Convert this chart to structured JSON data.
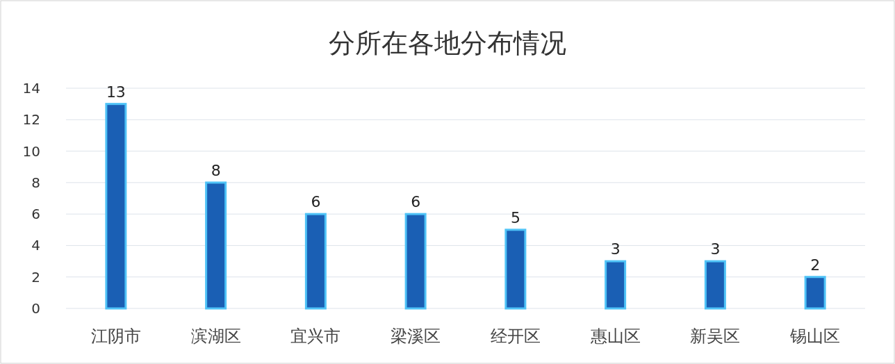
{
  "chart_data": {
    "type": "bar",
    "title": "分所在各地分布情况",
    "categories": [
      "江阴市",
      "滨湖区",
      "宜兴市",
      "梁溪区",
      "经开区",
      "惠山区",
      "新吴区",
      "锡山区"
    ],
    "values": [
      13,
      8,
      6,
      6,
      5,
      3,
      3,
      2
    ],
    "color": "#1a5fb4",
    "ylim": [
      0,
      14
    ],
    "yticks": [
      0,
      2,
      4,
      6,
      8,
      10,
      12,
      14
    ],
    "grid": "y",
    "data_labels": true
  }
}
